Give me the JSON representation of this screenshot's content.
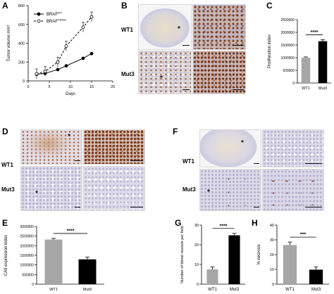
{
  "figure": {
    "panels": {
      "A": "A",
      "B": "B",
      "C": "C",
      "D": "D",
      "E": "E",
      "F": "F",
      "G": "G",
      "H": "H"
    },
    "row_labels": {
      "wt1": "WT1",
      "mut3": "Mut3"
    },
    "significance": {
      "c": "****",
      "e": "****",
      "g": "****",
      "h": "***"
    },
    "star": "*",
    "colors": {
      "wt_bar": "#a6a6a6",
      "mut_bar": "#000000",
      "ihc_brown": "#8a4a28",
      "hematoxylin": "#b8bcd8",
      "tissue_bg": "#e9e4ec"
    }
  },
  "chart_data": [
    {
      "panel": "A",
      "type": "line",
      "ylabel": "Tumor volume mm³",
      "xlabel": "Days",
      "xlim": [
        0,
        20
      ],
      "ylim": [
        0,
        800
      ],
      "xticks": [
        "0",
        "5",
        "10",
        "15",
        "20"
      ],
      "yticks": [
        "0",
        "200",
        "400",
        "600",
        "800"
      ],
      "legend_placement": "top-left",
      "series": [
        {
          "name": "BRAFWT",
          "legend_main": "BRAF",
          "legend_sup": "WT",
          "style": "solid-filled",
          "x": [
            2,
            4,
            7,
            9,
            13,
            15
          ],
          "y": [
            70,
            80,
            120,
            160,
            240,
            290
          ]
        },
        {
          "name": "BRAFV600E",
          "legend_main": "BRAF",
          "legend_sup": "V600E",
          "style": "dashed-open",
          "x": [
            2,
            4,
            7,
            9,
            13,
            15
          ],
          "y": [
            75,
            100,
            200,
            370,
            570,
            680
          ]
        }
      ]
    },
    {
      "panel": "C",
      "type": "bar",
      "categories": [
        "WT1",
        "Mut3"
      ],
      "values": [
        1000000,
        1650000
      ],
      "errors": [
        30000,
        60000
      ],
      "ylabel": "Proliferation index",
      "ylim": [
        0,
        2500000
      ],
      "yticks": [
        "0",
        "500000",
        "1000000",
        "1500000",
        "2000000",
        "2500000"
      ]
    },
    {
      "panel": "E",
      "type": "bar",
      "categories": [
        "WT1",
        "Mut3"
      ],
      "values": [
        2320000,
        1290000
      ],
      "errors": [
        60000,
        120000
      ],
      "ylabel": "CA9 expression index",
      "ylim": [
        0,
        3000000
      ],
      "yticks": [
        "0",
        "500000",
        "1000000",
        "1500000",
        "2000000",
        "2500000",
        "3000000"
      ]
    },
    {
      "panel": "G",
      "type": "bar",
      "categories": [
        "WT1",
        "Mut3"
      ],
      "values": [
        7.5,
        24.8
      ],
      "errors": [
        1.2,
        1.0
      ],
      "ylabel": "Number of blood vessels per field",
      "ylim": [
        0,
        30
      ],
      "yticks": [
        "0",
        "10",
        "20",
        "30"
      ]
    },
    {
      "panel": "H",
      "type": "bar",
      "categories": [
        "WT1",
        "Mut3"
      ],
      "values": [
        26.5,
        9.8
      ],
      "errors": [
        2.0,
        1.8
      ],
      "ylabel": "% necrosis",
      "ylim": [
        0,
        40
      ],
      "yticks": [
        "0",
        "10",
        "20",
        "30",
        "40"
      ]
    }
  ]
}
